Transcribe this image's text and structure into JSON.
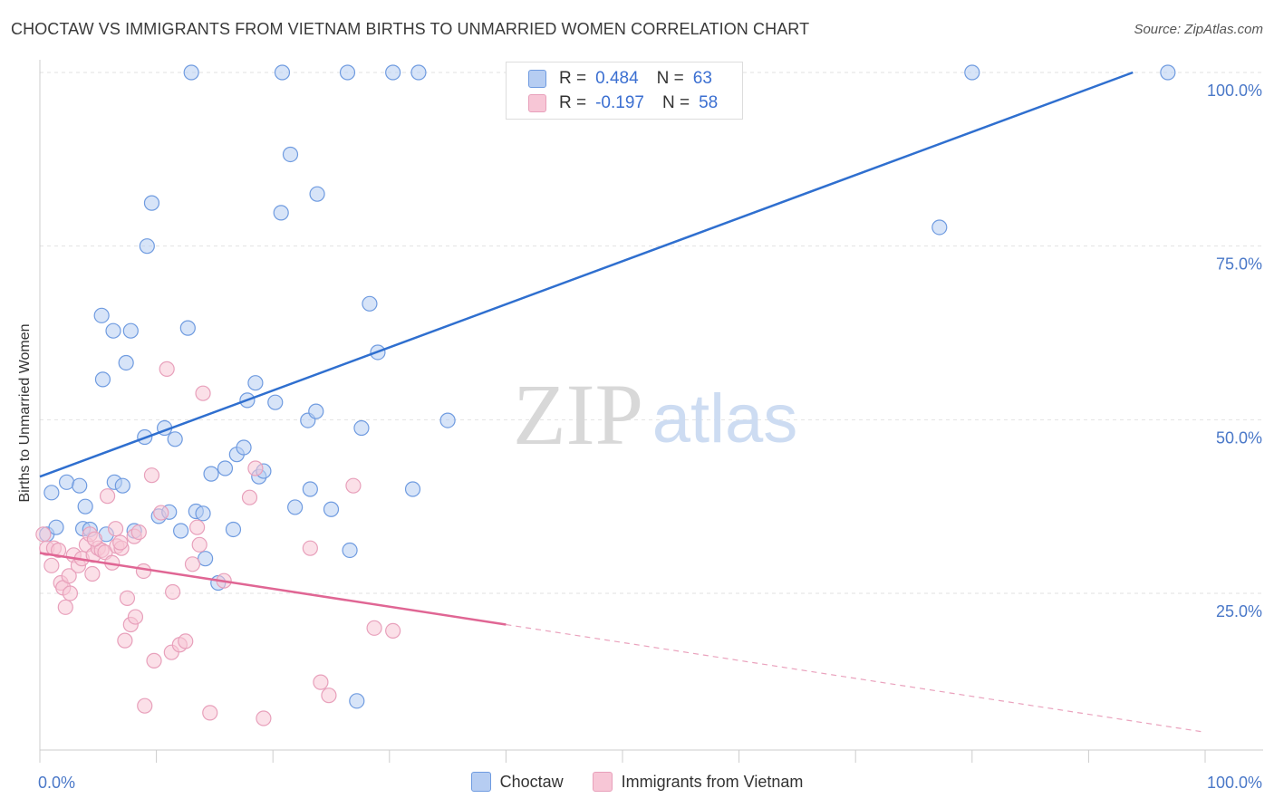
{
  "title": "CHOCTAW VS IMMIGRANTS FROM VIETNAM BIRTHS TO UNMARRIED WOMEN CORRELATION CHART",
  "source": "Source: ZipAtlas.com",
  "watermark": {
    "zip": "ZIP",
    "atlas": "atlas"
  },
  "legend": {
    "r_label": "R =",
    "n_label": "N =",
    "rows": [
      {
        "r": "0.484",
        "n": "63"
      },
      {
        "r": "-0.197",
        "n": "58"
      }
    ]
  },
  "bottom_legend": [
    "Choctaw",
    "Immigrants from Vietnam"
  ],
  "chart_data": {
    "type": "scatter",
    "title": "CHOCTAW VS IMMIGRANTS FROM VIETNAM BIRTHS TO UNMARRIED WOMEN CORRELATION CHART",
    "xlabel": "",
    "ylabel": "Births to Unmarried Women",
    "xlim": [
      0,
      100
    ],
    "ylim": [
      0,
      105
    ],
    "x_tick_labels": [
      "0.0%",
      "100.0%"
    ],
    "y_ticks": [
      25,
      50,
      75,
      100
    ],
    "y_tick_labels": [
      "25.0%",
      "50.0%",
      "75.0%",
      "100.0%"
    ],
    "grid": true,
    "legend_position": "top-center",
    "series": [
      {
        "name": "Choctaw",
        "color": "#6f9be0",
        "fill": "#b6cdf2",
        "r": 0.484,
        "n": 63,
        "trend": {
          "x": [
            0,
            93.8
          ],
          "y": [
            41.8,
            100
          ]
        },
        "points": [
          [
            0.6,
            33.5
          ],
          [
            1.0,
            39.5
          ],
          [
            1.4,
            34.5
          ],
          [
            2.3,
            41.0
          ],
          [
            3.4,
            40.5
          ],
          [
            3.7,
            34.3
          ],
          [
            3.9,
            37.5
          ],
          [
            4.3,
            34.2
          ],
          [
            5.7,
            33.5
          ],
          [
            6.4,
            41.0
          ],
          [
            7.1,
            40.5
          ],
          [
            5.4,
            55.8
          ],
          [
            5.3,
            65.0
          ],
          [
            6.3,
            62.8
          ],
          [
            7.4,
            58.2
          ],
          [
            7.8,
            62.8
          ],
          [
            8.1,
            34.0
          ],
          [
            9.0,
            47.5
          ],
          [
            9.2,
            75.0
          ],
          [
            9.6,
            81.2
          ],
          [
            10.2,
            36.1
          ],
          [
            10.7,
            48.8
          ],
          [
            11.1,
            36.7
          ],
          [
            11.6,
            47.2
          ],
          [
            12.1,
            34.0
          ],
          [
            12.7,
            63.2
          ],
          [
            13.4,
            36.8
          ],
          [
            14.0,
            36.5
          ],
          [
            14.2,
            30.0
          ],
          [
            14.7,
            42.2
          ],
          [
            15.3,
            26.5
          ],
          [
            15.9,
            43.0
          ],
          [
            16.6,
            34.2
          ],
          [
            16.9,
            45.0
          ],
          [
            17.5,
            46.0
          ],
          [
            17.8,
            52.8
          ],
          [
            18.5,
            55.3
          ],
          [
            18.8,
            41.8
          ],
          [
            19.2,
            42.6
          ],
          [
            20.2,
            52.5
          ],
          [
            20.7,
            79.8
          ],
          [
            21.5,
            88.2
          ],
          [
            21.9,
            37.4
          ],
          [
            23.0,
            49.9
          ],
          [
            23.2,
            40.0
          ],
          [
            23.7,
            51.2
          ],
          [
            23.8,
            82.5
          ],
          [
            25.0,
            37.1
          ],
          [
            26.6,
            31.2
          ],
          [
            27.2,
            9.5
          ],
          [
            27.6,
            48.8
          ],
          [
            28.3,
            66.7
          ],
          [
            29.0,
            59.7
          ],
          [
            32.0,
            40.0
          ],
          [
            35.0,
            49.9
          ],
          [
            13.0,
            100
          ],
          [
            20.8,
            100
          ],
          [
            26.4,
            100
          ],
          [
            30.3,
            100
          ],
          [
            32.5,
            100
          ],
          [
            80.0,
            100
          ],
          [
            77.2,
            77.7
          ],
          [
            96.8,
            100
          ]
        ]
      },
      {
        "name": "Immigrants from Vietnam",
        "color": "#e8a0bb",
        "fill": "#f7c6d6",
        "r": -0.197,
        "n": 58,
        "trend": {
          "x": [
            0,
            40
          ],
          "y": [
            30.8,
            20.5
          ]
        },
        "trend_dashed": {
          "x": [
            40,
            100
          ],
          "y": [
            20.5,
            5.0
          ]
        },
        "points": [
          [
            0.3,
            33.5
          ],
          [
            0.6,
            31.5
          ],
          [
            1.0,
            29.0
          ],
          [
            1.2,
            31.5
          ],
          [
            1.6,
            31.2
          ],
          [
            1.8,
            26.5
          ],
          [
            2.0,
            25.8
          ],
          [
            2.2,
            23.0
          ],
          [
            2.5,
            27.5
          ],
          [
            2.6,
            25.0
          ],
          [
            2.9,
            30.5
          ],
          [
            3.3,
            29.0
          ],
          [
            3.6,
            30.0
          ],
          [
            4.0,
            32.0
          ],
          [
            4.3,
            33.5
          ],
          [
            4.5,
            27.8
          ],
          [
            4.6,
            30.5
          ],
          [
            5.0,
            31.5
          ],
          [
            5.3,
            31.2
          ],
          [
            5.6,
            30.9
          ],
          [
            5.8,
            39.0
          ],
          [
            6.2,
            29.4
          ],
          [
            6.5,
            34.3
          ],
          [
            6.6,
            31.8
          ],
          [
            7.0,
            31.5
          ],
          [
            7.3,
            18.2
          ],
          [
            7.5,
            24.3
          ],
          [
            7.8,
            20.5
          ],
          [
            8.1,
            33.2
          ],
          [
            8.2,
            21.6
          ],
          [
            8.5,
            33.8
          ],
          [
            8.9,
            28.2
          ],
          [
            9.0,
            8.8
          ],
          [
            9.6,
            42.0
          ],
          [
            9.8,
            15.3
          ],
          [
            10.4,
            36.6
          ],
          [
            10.9,
            57.3
          ],
          [
            11.3,
            16.5
          ],
          [
            11.4,
            25.2
          ],
          [
            12.0,
            17.6
          ],
          [
            12.5,
            18.1
          ],
          [
            13.1,
            29.2
          ],
          [
            13.5,
            34.5
          ],
          [
            13.7,
            32.0
          ],
          [
            14.0,
            53.8
          ],
          [
            14.6,
            7.8
          ],
          [
            15.8,
            26.8
          ],
          [
            18.0,
            38.8
          ],
          [
            18.5,
            43.0
          ],
          [
            19.2,
            7.0
          ],
          [
            23.2,
            31.5
          ],
          [
            24.1,
            12.2
          ],
          [
            24.8,
            10.3
          ],
          [
            26.9,
            40.5
          ],
          [
            28.7,
            20.0
          ],
          [
            30.3,
            19.6
          ],
          [
            4.7,
            32.8
          ],
          [
            6.9,
            32.3
          ]
        ]
      }
    ]
  }
}
